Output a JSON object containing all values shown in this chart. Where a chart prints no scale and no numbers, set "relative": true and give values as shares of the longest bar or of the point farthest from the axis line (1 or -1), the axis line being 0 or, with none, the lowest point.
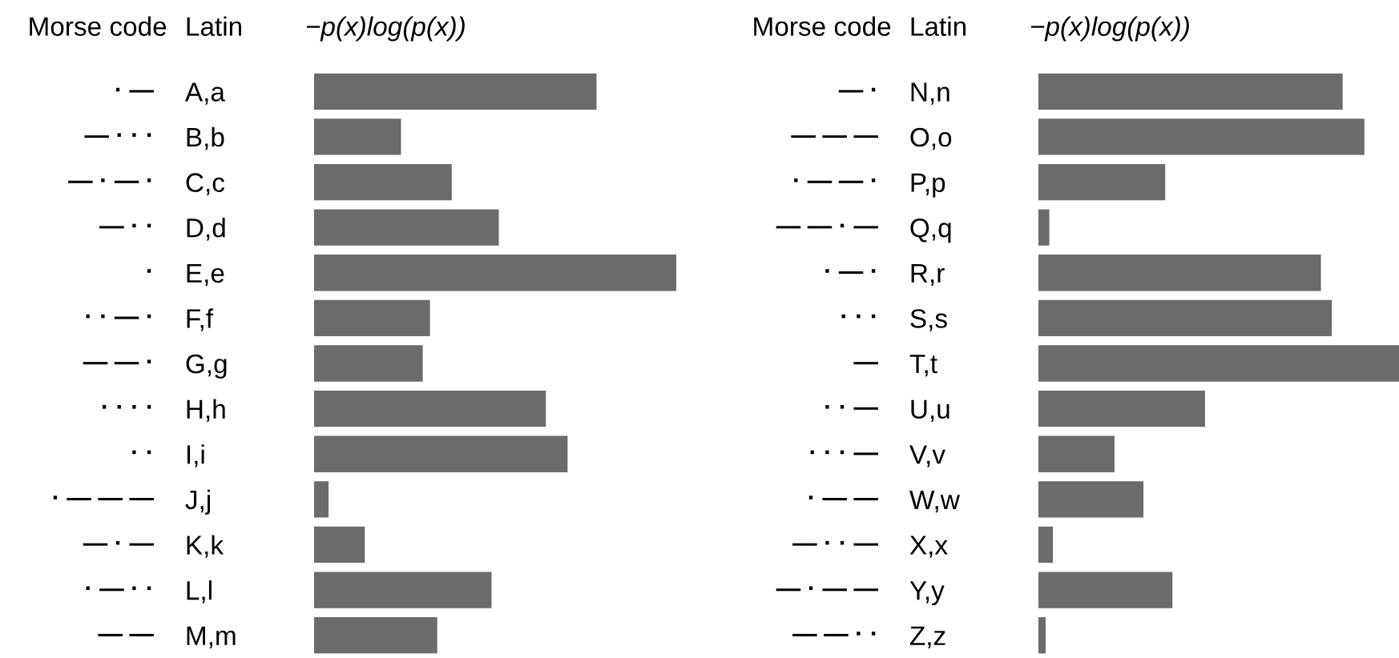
{
  "chart_data": [
    {
      "type": "bar",
      "orientation": "horizontal",
      "relative": true,
      "xlabel": "−p(x)log(p(x))",
      "ylabel": "Latin",
      "color": "#6b6b6b",
      "grid": false,
      "legend": false,
      "categories": [
        "A,a",
        "B,b",
        "C,c",
        "D,d",
        "E,e",
        "F,f",
        "G,g",
        "H,h",
        "I,i",
        "J,j",
        "K,k",
        "L,l",
        "M,m"
      ],
      "values": [
        0.78,
        0.24,
        0.38,
        0.51,
        1,
        0.32,
        0.3,
        0.64,
        0.7,
        0.04,
        0.14,
        0.49,
        0.34
      ],
      "annotations": [
        "Morse code",
        "· —",
        "— · · ·",
        "— · — ·",
        "— · ·",
        "·",
        "· · — ·",
        "— — ·",
        "· · · ·",
        "· ·",
        "· — — —",
        "— · —",
        "· — · ·",
        "— —"
      ]
    },
    {
      "type": "bar",
      "orientation": "horizontal",
      "relative": true,
      "xlabel": "−p(x)log(p(x))",
      "ylabel": "Latin",
      "color": "#6b6b6b",
      "grid": false,
      "legend": false,
      "categories": [
        "N,n",
        "O,o",
        "P,p",
        "Q,q",
        "R,r",
        "S,s",
        "T,t",
        "U,u",
        "V,v",
        "W,w",
        "X,x",
        "Y,y",
        "Z,z"
      ],
      "values": [
        0.84,
        0.9,
        0.35,
        0.03,
        0.78,
        0.81,
        1,
        0.46,
        0.21,
        0.29,
        0.04,
        0.37,
        0.02
      ],
      "annotations": [
        "Morse code",
        "— ·",
        "— — —",
        "· — — ·",
        "— — · —",
        "· — ·",
        "· · ·",
        "—",
        "· · —",
        "· · · —",
        "· — —",
        "— · · —",
        "— · — —",
        "— — · ·"
      ]
    }
  ]
}
